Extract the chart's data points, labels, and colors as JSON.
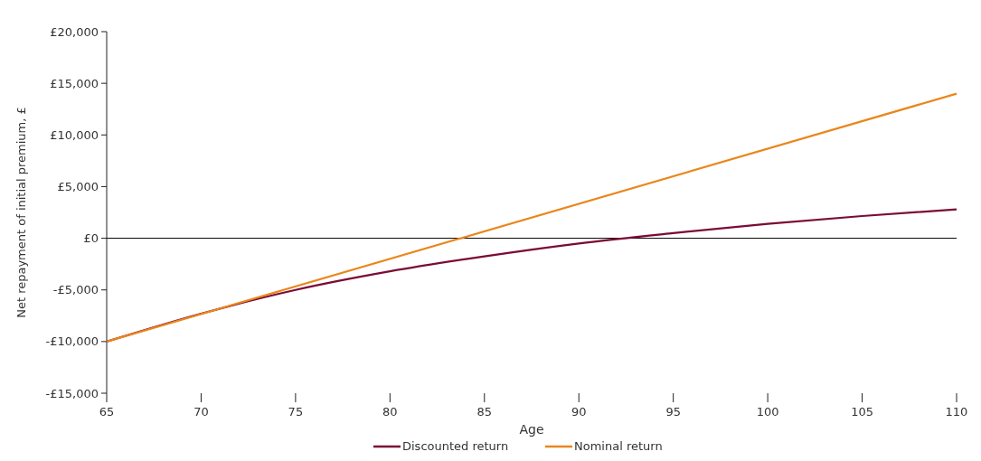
{
  "chart_data": {
    "type": "line",
    "xlabel": "Age",
    "ylabel": "Net repayment of initial premium, £",
    "x": [
      65,
      70,
      75,
      80,
      85,
      90,
      95,
      100,
      105,
      110
    ],
    "series": [
      {
        "name": "Discounted return",
        "color": "#7b0a36",
        "values": [
          -10000,
          -7300,
          -5000,
          -3200,
          -1750,
          -500,
          500,
          1400,
          2150,
          2800
        ]
      },
      {
        "name": "Nominal return",
        "color": "#ea861c",
        "x": [
          65,
          110
        ],
        "values": [
          -10000,
          14000
        ]
      }
    ],
    "xlim": [
      65,
      110
    ],
    "xticks": [
      65,
      70,
      75,
      80,
      85,
      90,
      95,
      100,
      105,
      110
    ],
    "ylim": [
      -15000,
      20000
    ],
    "yticks": [
      {
        "value": -15000,
        "label": "-£15,000"
      },
      {
        "value": -10000,
        "label": "-£10,000"
      },
      {
        "value": -5000,
        "label": "-£5,000"
      },
      {
        "value": 0,
        "label": "£0"
      },
      {
        "value": 5000,
        "label": "£5,000"
      },
      {
        "value": 10000,
        "label": "£10,000"
      },
      {
        "value": 15000,
        "label": "£15,000"
      },
      {
        "value": 20000,
        "label": "£20,000"
      }
    ],
    "ref_lines": [
      {
        "axis": "y",
        "value": 0,
        "color": "#000000"
      }
    ],
    "grid": false,
    "legend": "bottom",
    "marker": "none",
    "line_style": "solid"
  }
}
